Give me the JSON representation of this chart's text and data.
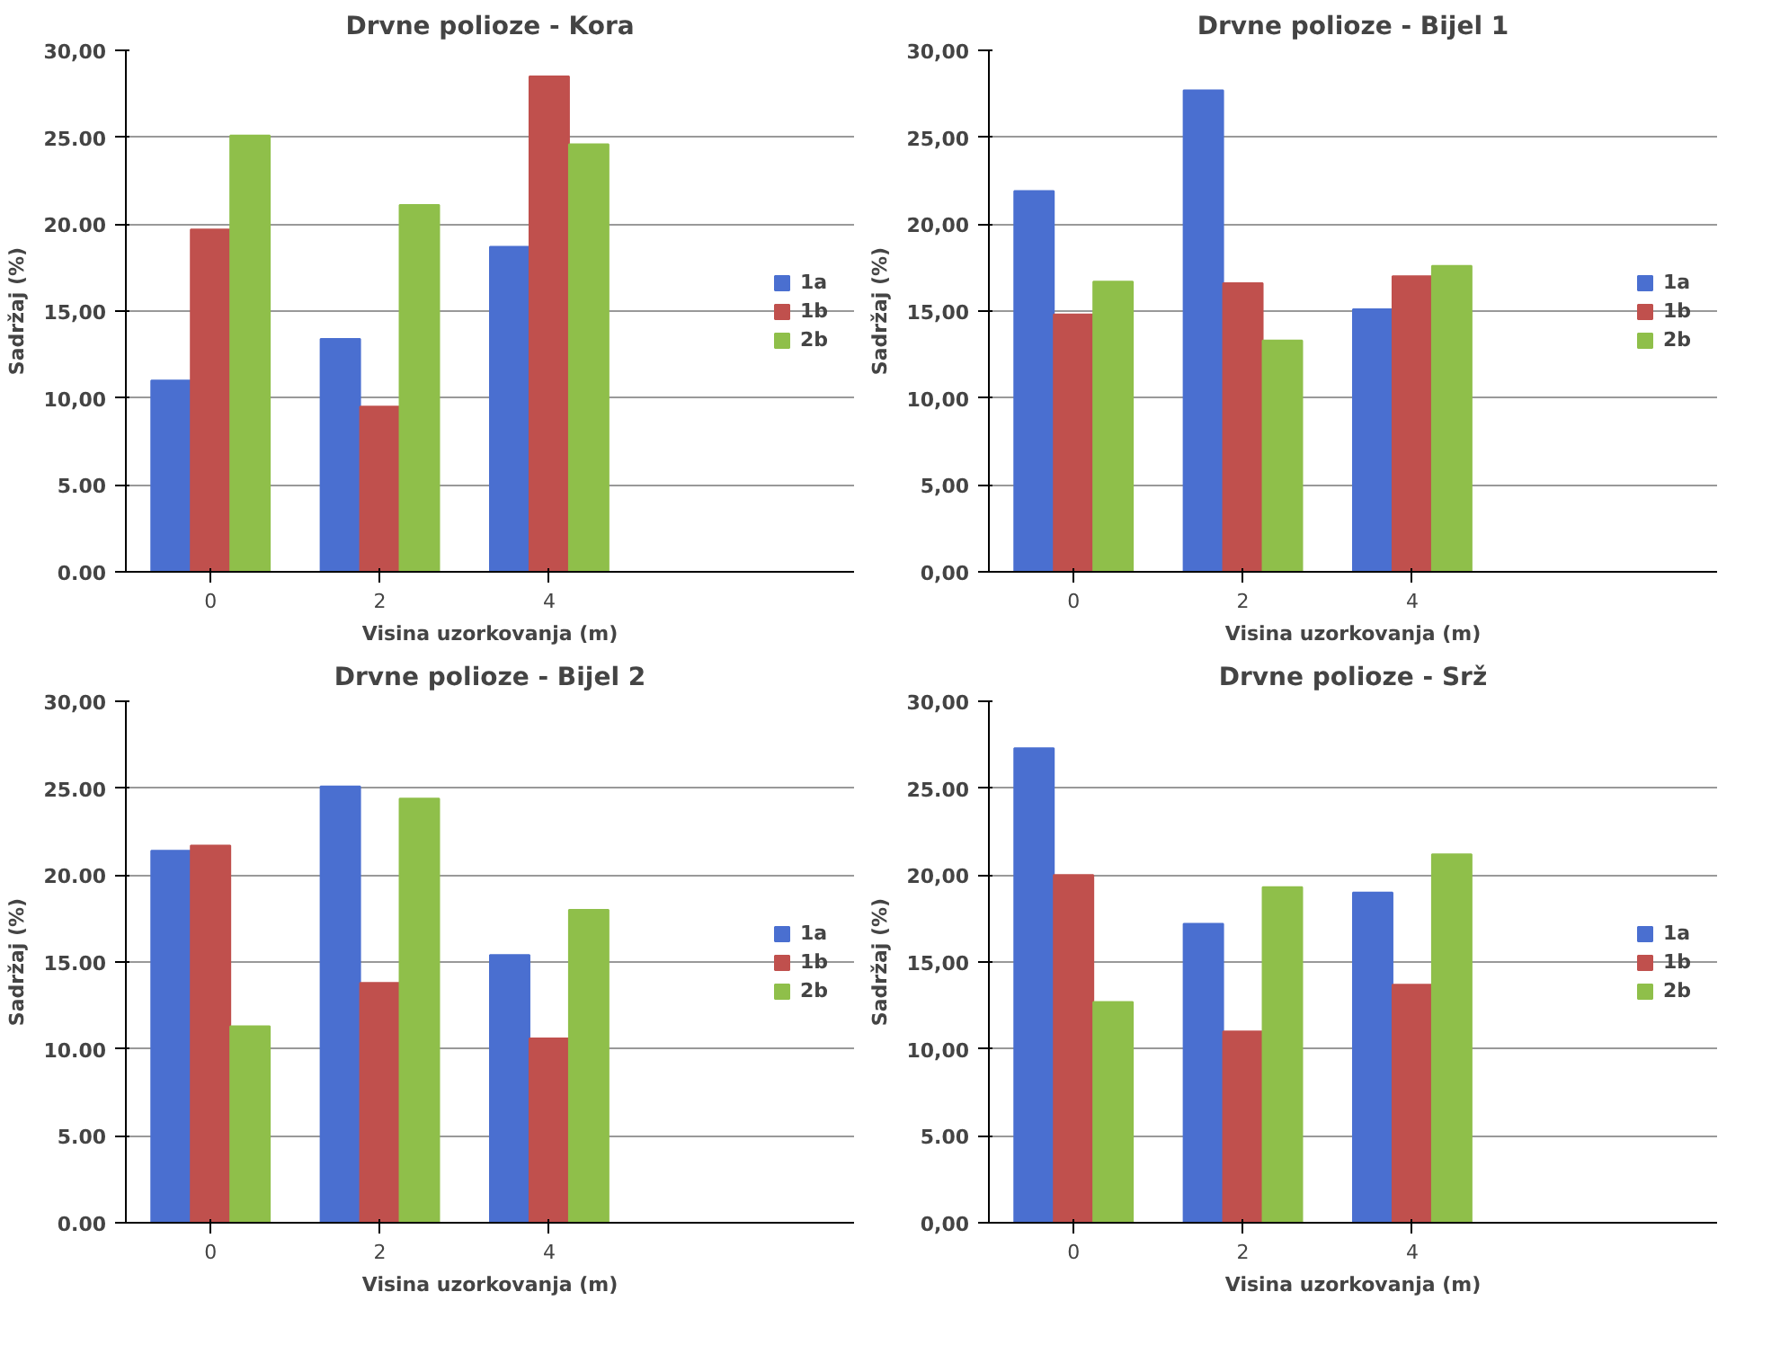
{
  "chart_data": [
    {
      "type": "bar",
      "title": "Drvne polioze - Kora",
      "xlabel": "Visina uzorkovanja (m)",
      "ylabel": "Sadržaj (%)",
      "categories": [
        "0",
        "2",
        "4"
      ],
      "series": [
        {
          "name": "1a",
          "color": "#4a6fd0",
          "values": [
            11.0,
            13.4,
            18.7
          ]
        },
        {
          "name": "1b",
          "color": "#c0504d",
          "values": [
            19.7,
            9.5,
            28.5
          ]
        },
        {
          "name": "2b",
          "color": "#8fbf4a",
          "values": [
            25.1,
            21.1,
            24.6
          ]
        }
      ],
      "ylim": [
        0,
        30
      ],
      "yticks": [
        {
          "value": 0,
          "label": "0.00"
        },
        {
          "value": 5,
          "label": "5.00"
        },
        {
          "value": 10,
          "label": "10,00"
        },
        {
          "value": 15,
          "label": "15,00"
        },
        {
          "value": 20,
          "label": "20.00"
        },
        {
          "value": 25,
          "label": "25.00"
        },
        {
          "value": 30,
          "label": "30,00"
        }
      ],
      "grid": "y",
      "legend": "right"
    },
    {
      "type": "bar",
      "title": "Drvne polioze - Bijel 1",
      "xlabel": "Visina uzorkovanja (m)",
      "ylabel": "Sadržaj (%)",
      "categories": [
        "0",
        "2",
        "4"
      ],
      "series": [
        {
          "name": "1a",
          "color": "#4a6fd0",
          "values": [
            21.9,
            27.7,
            15.1
          ]
        },
        {
          "name": "1b",
          "color": "#c0504d",
          "values": [
            14.8,
            16.6,
            17.0
          ]
        },
        {
          "name": "2b",
          "color": "#8fbf4a",
          "values": [
            16.7,
            13.3,
            17.6
          ]
        }
      ],
      "ylim": [
        0,
        30
      ],
      "yticks": [
        {
          "value": 0,
          "label": "0,00"
        },
        {
          "value": 5,
          "label": "5,00"
        },
        {
          "value": 10,
          "label": "10,00"
        },
        {
          "value": 15,
          "label": "15,00"
        },
        {
          "value": 20,
          "label": "20,00"
        },
        {
          "value": 25,
          "label": "25,00"
        },
        {
          "value": 30,
          "label": "30,00"
        }
      ],
      "grid": "y",
      "legend": "right"
    },
    {
      "type": "bar",
      "title": "Drvne polioze - Bijel 2",
      "xlabel": "Visina uzorkovanja (m)",
      "ylabel": "Sadržaj (%)",
      "categories": [
        "0",
        "2",
        "4"
      ],
      "series": [
        {
          "name": "1a",
          "color": "#4a6fd0",
          "values": [
            21.4,
            25.1,
            15.4
          ]
        },
        {
          "name": "1b",
          "color": "#c0504d",
          "values": [
            21.7,
            13.8,
            10.6
          ]
        },
        {
          "name": "2b",
          "color": "#8fbf4a",
          "values": [
            11.3,
            24.4,
            18.0
          ]
        }
      ],
      "ylim": [
        0,
        30
      ],
      "yticks": [
        {
          "value": 0,
          "label": "0.00"
        },
        {
          "value": 5,
          "label": "5.00"
        },
        {
          "value": 10,
          "label": "10.00"
        },
        {
          "value": 15,
          "label": "15.00"
        },
        {
          "value": 20,
          "label": "20.00"
        },
        {
          "value": 25,
          "label": "25.00"
        },
        {
          "value": 30,
          "label": "30,00"
        }
      ],
      "grid": "y",
      "legend": "right"
    },
    {
      "type": "bar",
      "title": "Drvne polioze - Srž",
      "xlabel": "Visina uzorkovanja (m)",
      "ylabel": "Sadržaj (%)",
      "categories": [
        "0",
        "2",
        "4"
      ],
      "series": [
        {
          "name": "1a",
          "color": "#4a6fd0",
          "values": [
            27.3,
            17.2,
            19.0
          ]
        },
        {
          "name": "1b",
          "color": "#c0504d",
          "values": [
            20.0,
            11.0,
            13.7
          ]
        },
        {
          "name": "2b",
          "color": "#8fbf4a",
          "values": [
            12.7,
            19.3,
            21.2
          ]
        }
      ],
      "ylim": [
        0,
        30
      ],
      "yticks": [
        {
          "value": 0,
          "label": "0,00"
        },
        {
          "value": 5,
          "label": "5.00"
        },
        {
          "value": 10,
          "label": "10,00"
        },
        {
          "value": 15,
          "label": "15,00"
        },
        {
          "value": 20,
          "label": "20,00"
        },
        {
          "value": 25,
          "label": "25.00"
        },
        {
          "value": 30,
          "label": "30,00"
        }
      ],
      "grid": "y",
      "legend": "right"
    }
  ]
}
